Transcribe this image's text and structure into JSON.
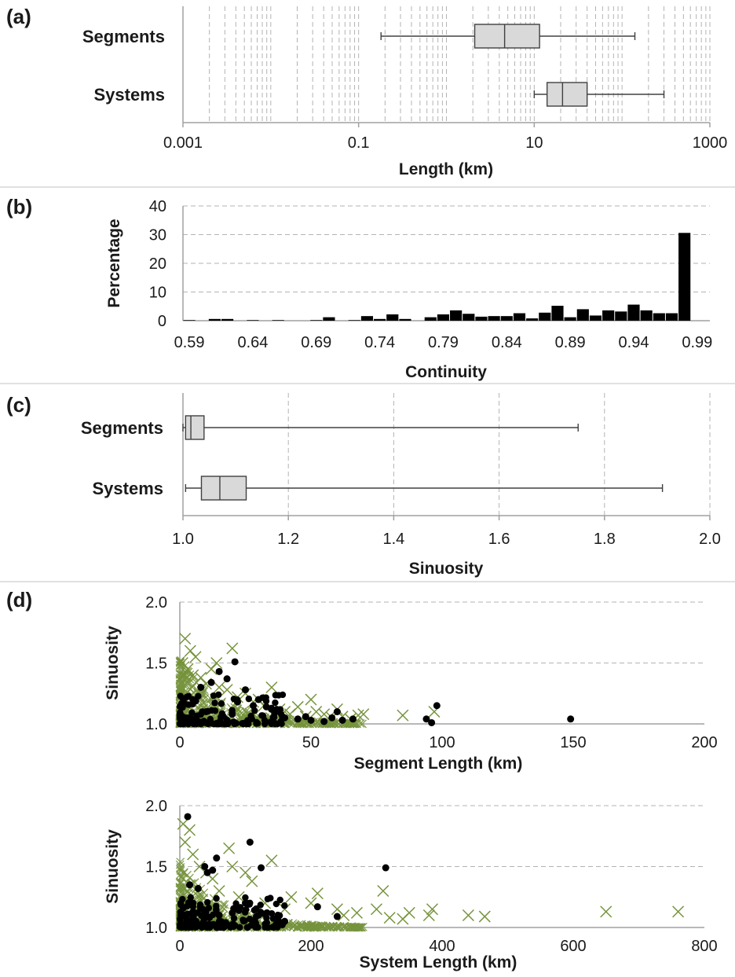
{
  "colors": {
    "cross": "#76933c",
    "dot": "#000000",
    "box_fill": "#d9d9d9",
    "bar": "#000000"
  },
  "panels": {
    "a": {
      "letter": "(a)"
    },
    "b": {
      "letter": "(b)"
    },
    "c": {
      "letter": "(c)"
    },
    "d": {
      "letter": "(d)"
    }
  },
  "chart_data": [
    {
      "id": "a",
      "type": "boxplot",
      "orientation": "horizontal",
      "xscale": "log",
      "xlabel": "Length (km)",
      "xlim": [
        0.001,
        1000
      ],
      "xticks": [
        "0.001",
        "0.1",
        "10",
        "1000"
      ],
      "grid": "vertical minor dashed",
      "series": [
        {
          "name": "Segments",
          "min": 0.18,
          "q1": 2.1,
          "median": 4.6,
          "q3": 11.5,
          "max": 140
        },
        {
          "name": "Systems",
          "min": 10,
          "q1": 14,
          "median": 21,
          "q3": 40,
          "max": 300
        }
      ]
    },
    {
      "id": "b",
      "type": "bar",
      "xlabel": "Continuity",
      "ylabel": "Percentage",
      "ylim": [
        0,
        40
      ],
      "yticks": [
        "0",
        "10",
        "20",
        "30",
        "40"
      ],
      "xticks": [
        "0.59",
        "0.64",
        "0.69",
        "0.74",
        "0.79",
        "0.84",
        "0.89",
        "0.94",
        "0.99"
      ],
      "grid": "horizontal dashed",
      "bin_width": 0.01,
      "bins": [
        0.59,
        0.6,
        0.61,
        0.62,
        0.63,
        0.64,
        0.65,
        0.66,
        0.67,
        0.68,
        0.69,
        0.7,
        0.71,
        0.72,
        0.73,
        0.74,
        0.75,
        0.76,
        0.77,
        0.78,
        0.79,
        0.8,
        0.81,
        0.82,
        0.83,
        0.84,
        0.85,
        0.86,
        0.87,
        0.88,
        0.89,
        0.9,
        0.91,
        0.92,
        0.93,
        0.94,
        0.95,
        0.96,
        0.97,
        0.98,
        0.99
      ],
      "values": [
        0.2,
        0,
        0.6,
        0.6,
        0,
        0.2,
        0,
        0.2,
        0,
        0,
        0.2,
        1.2,
        0,
        0.2,
        1.6,
        0.6,
        2.2,
        0.6,
        0,
        1.2,
        2.2,
        3.6,
        2.4,
        1.4,
        1.6,
        1.6,
        2.6,
        0.8,
        2.8,
        5.2,
        1.2,
        4.0,
        1.8,
        3.6,
        3.2,
        5.6,
        3.6,
        2.6,
        2.6,
        30.6,
        0
      ]
    },
    {
      "id": "c",
      "type": "boxplot",
      "orientation": "horizontal",
      "xlabel": "Sinuosity",
      "xlim": [
        1.0,
        2.0
      ],
      "xticks": [
        "1.0",
        "1.2",
        "1.4",
        "1.6",
        "1.8",
        "2.0"
      ],
      "grid": "vertical dashed",
      "series": [
        {
          "name": "Segments",
          "min": 1.0,
          "q1": 1.005,
          "median": 1.015,
          "q3": 1.04,
          "max": 1.75
        },
        {
          "name": "Systems",
          "min": 1.005,
          "q1": 1.035,
          "median": 1.07,
          "q3": 1.12,
          "max": 1.91
        }
      ]
    },
    {
      "id": "d-top",
      "type": "scatter",
      "xlabel": "Segment Length (km)",
      "ylabel": "Sinuosity",
      "xlim": [
        0,
        200
      ],
      "ylim": [
        1.0,
        2.0
      ],
      "xticks": [
        "0",
        "50",
        "100",
        "150",
        "200"
      ],
      "yticks": [
        "1.0",
        "1.5",
        "2.0"
      ],
      "grid": "horizontal dashed",
      "series": [
        {
          "marker": "x",
          "points": [
            [
              2,
              1.7
            ],
            [
              4,
              1.6
            ],
            [
              1,
              1.5
            ],
            [
              3,
              1.45
            ],
            [
              5,
              1.4
            ],
            [
              8,
              1.38
            ],
            [
              10,
              1.33
            ],
            [
              15,
              1.3
            ],
            [
              18,
              1.28
            ],
            [
              20,
              1.62
            ],
            [
              22,
              1.22
            ],
            [
              25,
              1.25
            ],
            [
              28,
              1.18
            ],
            [
              30,
              1.2
            ],
            [
              32,
              1.15
            ],
            [
              35,
              1.3
            ],
            [
              38,
              1.12
            ],
            [
              40,
              1.1
            ],
            [
              42,
              1.08
            ],
            [
              45,
              1.14
            ],
            [
              48,
              1.06
            ],
            [
              50,
              1.2
            ],
            [
              52,
              1.1
            ],
            [
              55,
              1.08
            ],
            [
              58,
              1.05
            ],
            [
              60,
              1.12
            ],
            [
              62,
              1.06
            ],
            [
              65,
              1.04
            ],
            [
              68,
              1.07
            ],
            [
              70,
              1.08
            ],
            [
              85,
              1.07
            ],
            [
              97,
              1.1
            ],
            [
              12,
              1.45
            ],
            [
              6,
              1.55
            ],
            [
              14,
              1.5
            ]
          ]
        },
        {
          "marker": "dot",
          "points": [
            [
              21,
              1.51
            ],
            [
              15,
              1.43
            ],
            [
              12,
              1.34
            ],
            [
              18,
              1.37
            ],
            [
              8,
              1.3
            ],
            [
              25,
              1.28
            ],
            [
              30,
              1.2
            ],
            [
              28,
              1.15
            ],
            [
              35,
              1.12
            ],
            [
              40,
              1.05
            ],
            [
              45,
              1.04
            ],
            [
              50,
              1.03
            ],
            [
              55,
              1.02
            ],
            [
              60,
              1.1
            ],
            [
              58,
              1.05
            ],
            [
              62,
              1.03
            ],
            [
              66,
              1.04
            ],
            [
              94,
              1.04
            ],
            [
              96,
              1.01
            ],
            [
              98,
              1.15
            ],
            [
              149,
              1.04
            ],
            [
              5,
              1.2
            ],
            [
              10,
              1.1
            ],
            [
              3,
              1.05
            ],
            [
              20,
              1.08
            ],
            [
              22,
              1.18
            ],
            [
              38,
              1.1
            ],
            [
              33,
              1.14
            ],
            [
              48,
              1.06
            ],
            [
              26,
              1.02
            ]
          ]
        }
      ]
    },
    {
      "id": "d-bottom",
      "type": "scatter",
      "xlabel": "System Length (km)",
      "ylabel": "Sinuosity",
      "xlim": [
        0,
        800
      ],
      "ylim": [
        1.0,
        2.0
      ],
      "xticks": [
        "0",
        "200",
        "400",
        "600",
        "800"
      ],
      "yticks": [
        "1.0",
        "1.5",
        "2.0"
      ],
      "grid": "horizontal dashed",
      "series": [
        {
          "marker": "x",
          "points": [
            [
              5,
              1.85
            ],
            [
              15,
              1.8
            ],
            [
              8,
              1.7
            ],
            [
              20,
              1.6
            ],
            [
              30,
              1.5
            ],
            [
              40,
              1.45
            ],
            [
              50,
              1.4
            ],
            [
              75,
              1.65
            ],
            [
              80,
              1.5
            ],
            [
              100,
              1.45
            ],
            [
              110,
              1.38
            ],
            [
              140,
              1.55
            ],
            [
              170,
              1.25
            ],
            [
              200,
              1.2
            ],
            [
              210,
              1.28
            ],
            [
              240,
              1.15
            ],
            [
              270,
              1.12
            ],
            [
              300,
              1.15
            ],
            [
              310,
              1.3
            ],
            [
              320,
              1.08
            ],
            [
              340,
              1.07
            ],
            [
              350,
              1.12
            ],
            [
              380,
              1.1
            ],
            [
              385,
              1.15
            ],
            [
              440,
              1.1
            ],
            [
              465,
              1.09
            ],
            [
              650,
              1.13
            ],
            [
              760,
              1.13
            ],
            [
              60,
              1.3
            ],
            [
              90,
              1.25
            ],
            [
              130,
              1.2
            ],
            [
              160,
              1.15
            ],
            [
              250,
              1.1
            ]
          ]
        },
        {
          "marker": "dot",
          "points": [
            [
              12,
              1.91
            ],
            [
              107,
              1.7
            ],
            [
              56,
              1.57
            ],
            [
              50,
              1.47
            ],
            [
              38,
              1.5
            ],
            [
              42,
              1.45
            ],
            [
              314,
              1.49
            ],
            [
              124,
              1.49
            ],
            [
              15,
              1.35
            ],
            [
              28,
              1.32
            ],
            [
              100,
              1.2
            ],
            [
              20,
              1.2
            ],
            [
              35,
              1.15
            ],
            [
              60,
              1.1
            ],
            [
              80,
              1.12
            ],
            [
              120,
              1.1
            ],
            [
              150,
              1.06
            ],
            [
              210,
              1.17
            ],
            [
              240,
              1.09
            ],
            [
              25,
              1.05
            ],
            [
              45,
              1.08
            ],
            [
              70,
              1.04
            ],
            [
              10,
              1.1
            ],
            [
              90,
              1.14
            ],
            [
              160,
              1.05
            ]
          ]
        }
      ]
    }
  ]
}
